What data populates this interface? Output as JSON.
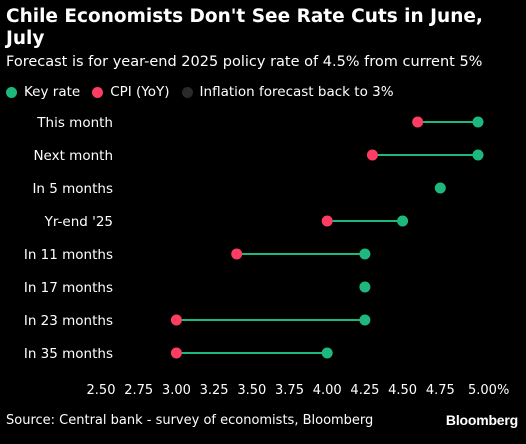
{
  "header": {
    "title": "Chile Economists Don't See Rate Cuts in June, July",
    "subtitle": "Forecast is for year-end 2025 policy rate of 4.5% from current 5%"
  },
  "colors": {
    "key_rate": "#1db87e",
    "cpi": "#ff3d63",
    "inflation_forecast": "#2a2a2a",
    "connector": "#1db87e",
    "background": "#000000"
  },
  "footer": {
    "source": "Source: Central bank - survey of economists, Bloomberg",
    "brand": "Bloomberg"
  },
  "chart_data": {
    "type": "dumbbell",
    "title": "Chile Economists Don't See Rate Cuts in June, July",
    "subtitle": "Forecast is for year-end 2025 policy rate of 4.5% from current 5%",
    "legend": [
      {
        "name": "Key rate",
        "color": "#1db87e"
      },
      {
        "name": "CPI (YoY)",
        "color": "#ff3d63"
      },
      {
        "name": "Inflation forecast back to 3%",
        "color": "#2a2a2a"
      }
    ],
    "legend_position": "top-left",
    "categories": [
      "This month",
      "Next month",
      "In 5 months",
      "Yr-end '25",
      "In 11 months",
      "In 17 months",
      "In 23 months",
      "In 35 months"
    ],
    "series": [
      {
        "name": "Key rate",
        "values": [
          5.0,
          5.0,
          4.75,
          4.5,
          4.25,
          4.25,
          4.25,
          4.0
        ]
      },
      {
        "name": "CPI (YoY)",
        "values": [
          4.6,
          4.3,
          null,
          4.0,
          3.4,
          null,
          3.0,
          3.0
        ]
      }
    ],
    "x_ticks": [
      "2.50",
      "2.75",
      "3.00",
      "3.25",
      "3.50",
      "3.75",
      "4.00",
      "4.25",
      "4.50",
      "4.75",
      "5.00%"
    ],
    "xlim": [
      2.5,
      5.0
    ],
    "grid": false
  }
}
